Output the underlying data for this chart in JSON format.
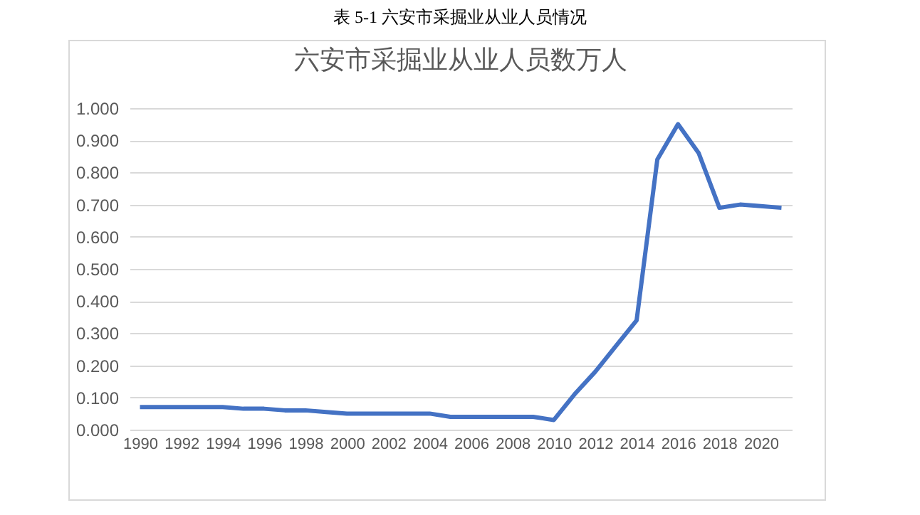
{
  "chart_data": {
    "type": "line",
    "title": "六安市采掘业从业人员数万人",
    "annotations": [
      "表 5-1  六安市采掘业从业人员情况"
    ],
    "x": [
      1990,
      1991,
      1992,
      1993,
      1994,
      1995,
      1996,
      1997,
      1998,
      1999,
      2000,
      2001,
      2002,
      2003,
      2004,
      2005,
      2006,
      2007,
      2008,
      2009,
      2010,
      2011,
      2012,
      2013,
      2014,
      2015,
      2016,
      2017,
      2018,
      2019,
      2020,
      2021
    ],
    "series": [
      {
        "color": "#4472c4",
        "values": [
          0.07,
          0.07,
          0.07,
          0.07,
          0.07,
          0.065,
          0.065,
          0.06,
          0.06,
          0.055,
          0.05,
          0.05,
          0.05,
          0.05,
          0.05,
          0.04,
          0.04,
          0.04,
          0.04,
          0.04,
          0.03,
          0.11,
          0.18,
          0.26,
          0.34,
          0.84,
          0.95,
          0.86,
          0.69,
          0.7,
          0.695,
          0.69
        ]
      }
    ],
    "xlim": [
      1989.5,
      2021.5
    ],
    "xticks": [
      1990,
      1992,
      1994,
      1996,
      1998,
      2000,
      2002,
      2004,
      2006,
      2008,
      2010,
      2012,
      2014,
      2016,
      2018,
      2020
    ],
    "ylim": [
      0,
      1
    ],
    "yticks": [
      {
        "value": 0,
        "label": "0.000"
      },
      {
        "value": 0.1,
        "label": "0.100"
      },
      {
        "value": 0.2,
        "label": "0.200"
      },
      {
        "value": 0.3,
        "label": "0.300"
      },
      {
        "value": 0.4,
        "label": "0.400"
      },
      {
        "value": 0.5,
        "label": "0.500"
      },
      {
        "value": 0.6,
        "label": "0.600"
      },
      {
        "value": 0.7,
        "label": "0.700"
      },
      {
        "value": 0.8,
        "label": "0.800"
      },
      {
        "value": 0.9,
        "label": "0.900"
      },
      {
        "value": 1.0,
        "label": "1.000"
      }
    ],
    "grid": "y",
    "marker": "none",
    "line_style": "solid"
  }
}
